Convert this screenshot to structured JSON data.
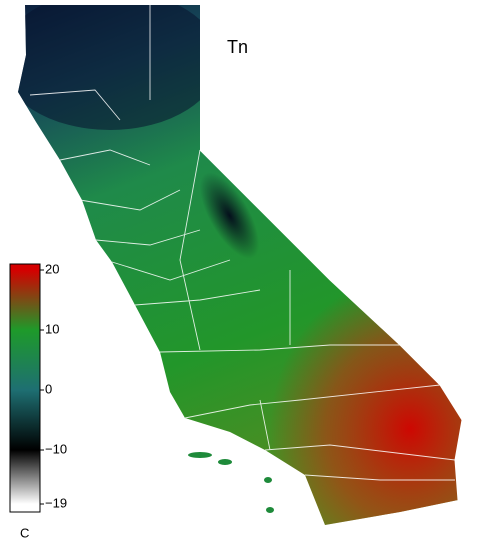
{
  "map": {
    "title": "Tn",
    "unit": "C",
    "colorbar": {
      "lim": [
        -19,
        20
      ],
      "ticks": [
        20,
        10,
        0,
        {
          "value": -10,
          "label": "−10"
        },
        {
          "value": -19,
          "label": "−19"
        }
      ],
      "colors": [
        "#d40000",
        "#1e9a2a",
        "#1e6f72",
        "#000000",
        "#ffffff"
      ]
    }
  }
}
